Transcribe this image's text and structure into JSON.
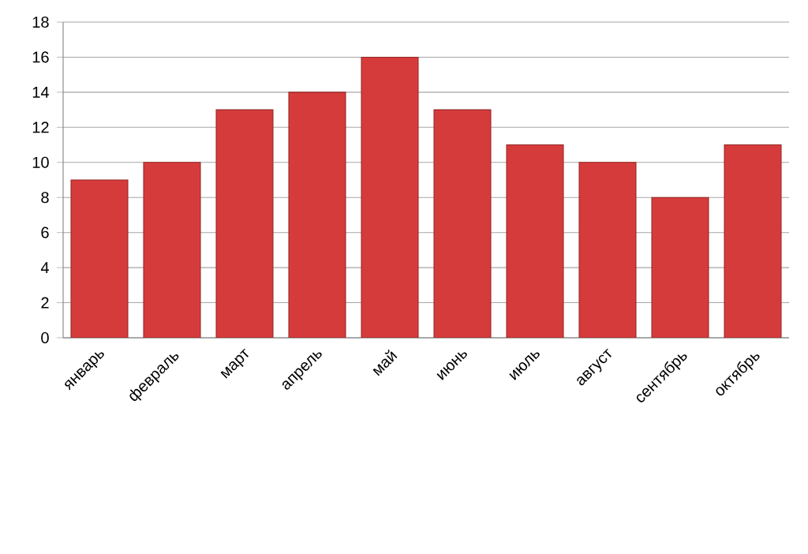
{
  "chart_data": {
    "type": "bar",
    "categories": [
      "январь",
      "февраль",
      "март",
      "апрель",
      "май",
      "июнь",
      "июль",
      "август",
      "сентябрь",
      "октябрь"
    ],
    "values": [
      9,
      10,
      13,
      14,
      16,
      13,
      11,
      10,
      8,
      11
    ],
    "color": "#d63b3b",
    "ylim": [
      0,
      18
    ],
    "yticks": [
      0,
      2,
      4,
      6,
      8,
      10,
      12,
      14,
      16,
      18
    ],
    "grid": "y"
  }
}
